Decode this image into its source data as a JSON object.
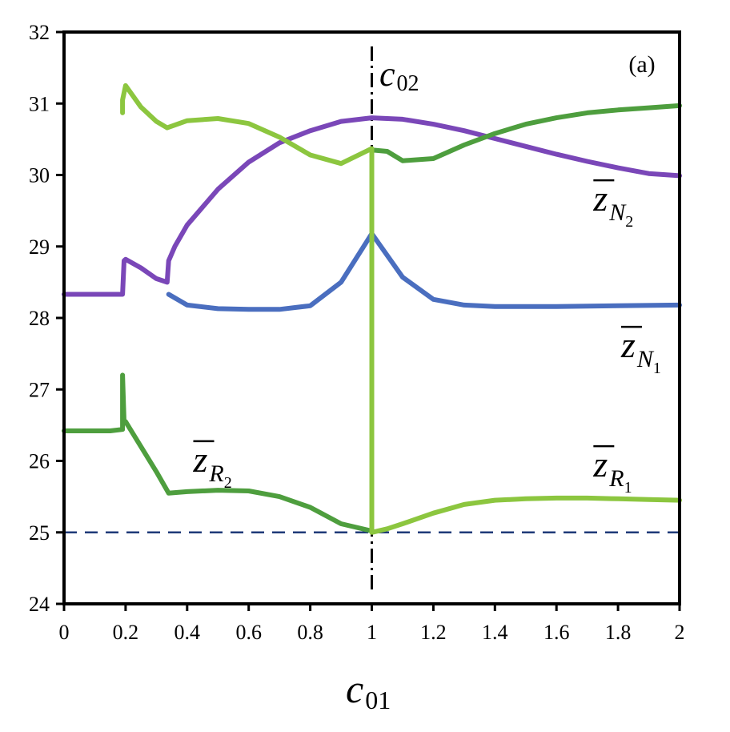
{
  "chart_data": {
    "type": "line",
    "panel_label": "(a)",
    "xlabel": {
      "main": "c",
      "sub": "01"
    },
    "ylabel": "",
    "xlim": [
      0,
      2
    ],
    "ylim": [
      24,
      32
    ],
    "x_ticks": [
      0,
      0.2,
      0.4,
      0.6,
      0.8,
      1,
      1.2,
      1.4,
      1.6,
      1.8,
      2
    ],
    "x_tick_labels": [
      "0",
      "0.2",
      "0.4",
      "0.6",
      "0.8",
      "1",
      "1.2",
      "1.4",
      "1.6",
      "1.8",
      "2"
    ],
    "y_ticks": [
      24,
      25,
      26,
      27,
      28,
      29,
      30,
      31,
      32
    ],
    "y_tick_labels": [
      "24",
      "25",
      "26",
      "27",
      "28",
      "29",
      "30",
      "31",
      "32"
    ],
    "grid": false,
    "reference_lines": [
      {
        "name": "dashed-reference",
        "orientation": "horizontal",
        "value": 25,
        "style": "dashed",
        "color": "#1f3a78"
      },
      {
        "name": "c02-marker",
        "orientation": "vertical",
        "value": 1,
        "style": "dash-dot",
        "color": "#000000",
        "label": {
          "main": "c",
          "sub": "02"
        }
      }
    ],
    "series": [
      {
        "name": "z_N2",
        "label": {
          "main": "z",
          "sub": "N",
          "subsub": "2"
        },
        "color": "#7a47b8",
        "points": [
          [
            0,
            28.33
          ],
          [
            0.18,
            28.33
          ],
          [
            0.19,
            28.33
          ],
          [
            0.195,
            28.8
          ],
          [
            0.2,
            28.82
          ],
          [
            0.25,
            28.7
          ],
          [
            0.3,
            28.55
          ],
          [
            0.335,
            28.5
          ],
          [
            0.34,
            28.8
          ],
          [
            0.36,
            29.0
          ],
          [
            0.4,
            29.3
          ],
          [
            0.5,
            29.8
          ],
          [
            0.6,
            30.18
          ],
          [
            0.7,
            30.45
          ],
          [
            0.8,
            30.62
          ],
          [
            0.9,
            30.75
          ],
          [
            1.0,
            30.8
          ],
          [
            1.1,
            30.78
          ],
          [
            1.2,
            30.71
          ],
          [
            1.3,
            30.62
          ],
          [
            1.4,
            30.51
          ],
          [
            1.5,
            30.4
          ],
          [
            1.6,
            30.29
          ],
          [
            1.7,
            30.19
          ],
          [
            1.8,
            30.1
          ],
          [
            1.9,
            30.02
          ],
          [
            2.0,
            29.99
          ]
        ]
      },
      {
        "name": "z_N1",
        "label": {
          "main": "z",
          "sub": "N",
          "subsub": "1"
        },
        "color": "#4a6ebf",
        "points": [
          [
            0.34,
            28.33
          ],
          [
            0.4,
            28.18
          ],
          [
            0.5,
            28.13
          ],
          [
            0.6,
            28.12
          ],
          [
            0.7,
            28.12
          ],
          [
            0.8,
            28.17
          ],
          [
            0.9,
            28.5
          ],
          [
            1.0,
            29.18
          ],
          [
            1.1,
            28.57
          ],
          [
            1.2,
            28.26
          ],
          [
            1.3,
            28.18
          ],
          [
            1.4,
            28.16
          ],
          [
            1.6,
            28.16
          ],
          [
            1.8,
            28.17
          ],
          [
            2.0,
            28.18
          ]
        ]
      },
      {
        "name": "z_R2",
        "label": {
          "main": "z",
          "sub": "R",
          "subsub": "2"
        },
        "color": "#4e9e3e",
        "points": [
          [
            0,
            26.42
          ],
          [
            0.05,
            26.42
          ],
          [
            0.1,
            26.42
          ],
          [
            0.15,
            26.42
          ],
          [
            0.19,
            26.44
          ],
          [
            0.19,
            27.2
          ],
          [
            0.195,
            26.55
          ],
          [
            0.2,
            26.55
          ],
          [
            0.25,
            26.2
          ],
          [
            0.3,
            25.85
          ],
          [
            0.34,
            25.55
          ],
          [
            0.4,
            25.57
          ],
          [
            0.5,
            25.59
          ],
          [
            0.6,
            25.58
          ],
          [
            0.7,
            25.5
          ],
          [
            0.8,
            25.35
          ],
          [
            0.9,
            25.12
          ],
          [
            1.0,
            25.02
          ],
          [
            1.0,
            30.35
          ],
          [
            1.05,
            30.33
          ],
          [
            1.1,
            30.2
          ],
          [
            1.2,
            30.23
          ],
          [
            1.3,
            30.42
          ],
          [
            1.4,
            30.58
          ],
          [
            1.5,
            30.71
          ],
          [
            1.6,
            30.8
          ],
          [
            1.7,
            30.87
          ],
          [
            1.8,
            30.91
          ],
          [
            1.9,
            30.94
          ],
          [
            2.0,
            30.97
          ]
        ]
      },
      {
        "name": "z_R1",
        "label": {
          "main": "z",
          "sub": "R",
          "subsub": "1"
        },
        "color": "#8cc63f",
        "points": [
          [
            0.19,
            30.87
          ],
          [
            0.19,
            31.05
          ],
          [
            0.2,
            31.25
          ],
          [
            0.25,
            30.95
          ],
          [
            0.3,
            30.75
          ],
          [
            0.335,
            30.66
          ],
          [
            0.4,
            30.76
          ],
          [
            0.5,
            30.79
          ],
          [
            0.6,
            30.72
          ],
          [
            0.7,
            30.53
          ],
          [
            0.8,
            30.28
          ],
          [
            0.9,
            30.16
          ],
          [
            0.99,
            30.35
          ],
          [
            1.0,
            30.37
          ],
          [
            1.0,
            25.0
          ],
          [
            1.05,
            25.05
          ],
          [
            1.1,
            25.12
          ],
          [
            1.2,
            25.27
          ],
          [
            1.3,
            25.39
          ],
          [
            1.4,
            25.45
          ],
          [
            1.5,
            25.47
          ],
          [
            1.6,
            25.48
          ],
          [
            1.7,
            25.48
          ],
          [
            1.8,
            25.47
          ],
          [
            1.9,
            25.46
          ],
          [
            2.0,
            25.45
          ]
        ]
      }
    ],
    "annotations": [
      {
        "series": "z_N2",
        "x": 1.72,
        "y": 29.5
      },
      {
        "series": "z_N1",
        "x": 1.81,
        "y": 27.45
      },
      {
        "series": "z_R2",
        "x": 0.42,
        "y": 25.85
      },
      {
        "series": "z_R1",
        "x": 1.72,
        "y": 25.78
      }
    ]
  }
}
